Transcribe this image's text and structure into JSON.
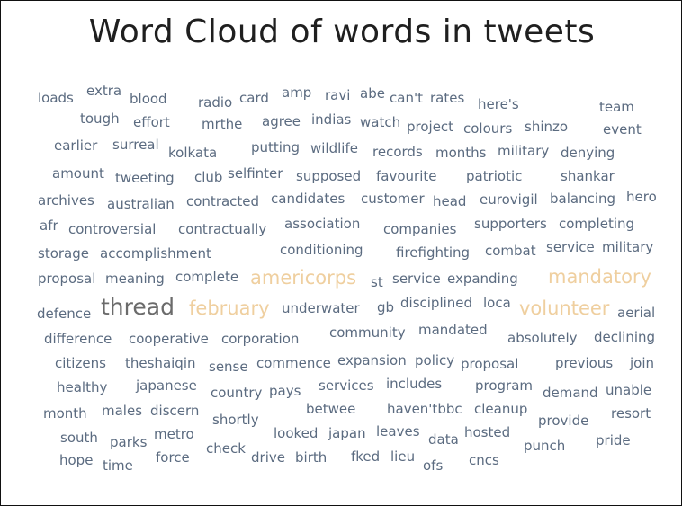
{
  "title": "Word Cloud of words in tweets",
  "colors": {
    "regular": "#5b6b80",
    "highlight": "#efcf9f",
    "thread": "#6b6b6b"
  },
  "words": {
    "loads": "loads",
    "extra": "extra",
    "blood": "blood",
    "radio": "radio",
    "card": "card",
    "amp": "amp",
    "ravi": "ravi",
    "abe": "abe",
    "cant": "can't",
    "rates": "rates",
    "heres": "here's",
    "team": "team",
    "tough": "tough",
    "effort": "effort",
    "mrthe": "mrthe",
    "agree": "agree",
    "indias": "indias",
    "watch": "watch",
    "project": "project",
    "colours": "colours",
    "shinzo": "shinzo",
    "event": "event",
    "earlier": "earlier",
    "surreal": "surreal",
    "kolkata": "kolkata",
    "putting": "putting",
    "wildlife": "wildlife",
    "records": "records",
    "months": "months",
    "military1": "military",
    "denying": "denying",
    "amount": "amount",
    "tweeting": "tweeting",
    "club": "club",
    "selfinter": "selfinter",
    "supposed": "supposed",
    "favourite": "favourite",
    "patriotic": "patriotic",
    "shankar": "shankar",
    "archives": "archives",
    "australian": "australian",
    "contracted": "contracted",
    "candidates": "candidates",
    "customer": "customer",
    "head": "head",
    "eurovigil": "eurovigil",
    "balancing": "balancing",
    "hero": "hero",
    "afr": "afr",
    "controversial": "controversial",
    "contractually": "contractually",
    "association": "association",
    "companies": "companies",
    "supporters": "supporters",
    "completing": "completing",
    "storage": "storage",
    "accomplishment": "accomplishment",
    "conditioning": "conditioning",
    "firefighting": "firefighting",
    "combat": "combat",
    "service1": "service",
    "military2": "military",
    "proposal1": "proposal",
    "meaning": "meaning",
    "complete": "complete",
    "americorps": "americorps",
    "st": "st",
    "service2": "service",
    "expanding": "expanding",
    "mandatory": "mandatory",
    "defence": "defence",
    "thread": "thread",
    "february": "february",
    "underwater": "underwater",
    "gb": "gb",
    "disciplined": "disciplined",
    "loca": "loca",
    "volunteer": "volunteer",
    "aerial": "aerial",
    "difference": "difference",
    "cooperative": "cooperative",
    "corporation": "corporation",
    "community": "community",
    "mandated": "mandated",
    "absolutely": "absolutely",
    "declining": "declining",
    "citizens": "citizens",
    "theshaiqin": "theshaiqin",
    "sense": "sense",
    "commence": "commence",
    "expansion": "expansion",
    "policy": "policy",
    "proposal2": "proposal",
    "previous": "previous",
    "join": "join",
    "healthy": "healthy",
    "japanese": "japanese",
    "country": "country",
    "pays": "pays",
    "services": "services",
    "includes": "includes",
    "program": "program",
    "demand": "demand",
    "unable": "unable",
    "month": "month",
    "males": "males",
    "discern": "discern",
    "shortly": "shortly",
    "betwee": "betwee",
    "haventbbc": "haven'tbbc",
    "cleanup": "cleanup",
    "provide": "provide",
    "resort": "resort",
    "south": "south",
    "parks": "parks",
    "metro": "metro",
    "check": "check",
    "looked": "looked",
    "japan": "japan",
    "leaves": "leaves",
    "data": "data",
    "hosted": "hosted",
    "punch": "punch",
    "pride": "pride",
    "hope": "hope",
    "time": "time",
    "force": "force",
    "drive": "drive",
    "birth": "birth",
    "fked": "fked",
    "lieu": "lieu",
    "ofs": "ofs",
    "cncs": "cncs"
  }
}
